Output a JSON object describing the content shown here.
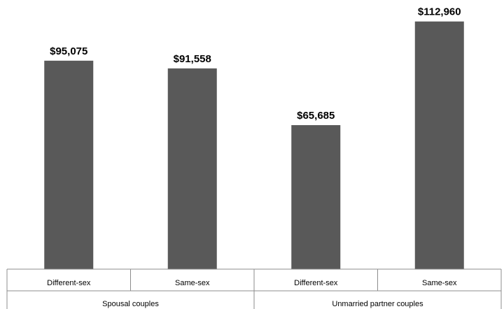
{
  "chart_data": {
    "type": "bar",
    "title": "",
    "xlabel": "",
    "ylabel": "",
    "categories": [
      "Different-sex",
      "Same-sex",
      "Different-sex",
      "Same-sex"
    ],
    "groups": [
      {
        "label": "Spousal couples",
        "categories": [
          0,
          1
        ]
      },
      {
        "label": "Unmarried partner couples",
        "categories": [
          2,
          3
        ]
      }
    ],
    "values": [
      95075,
      91558,
      65685,
      112960
    ],
    "value_labels": [
      "$95,075",
      "$91,558",
      "$65,685",
      "$112,960"
    ],
    "ylim": [
      0,
      120000
    ],
    "grid": false,
    "legend": "none",
    "bar_color": "#595959"
  }
}
